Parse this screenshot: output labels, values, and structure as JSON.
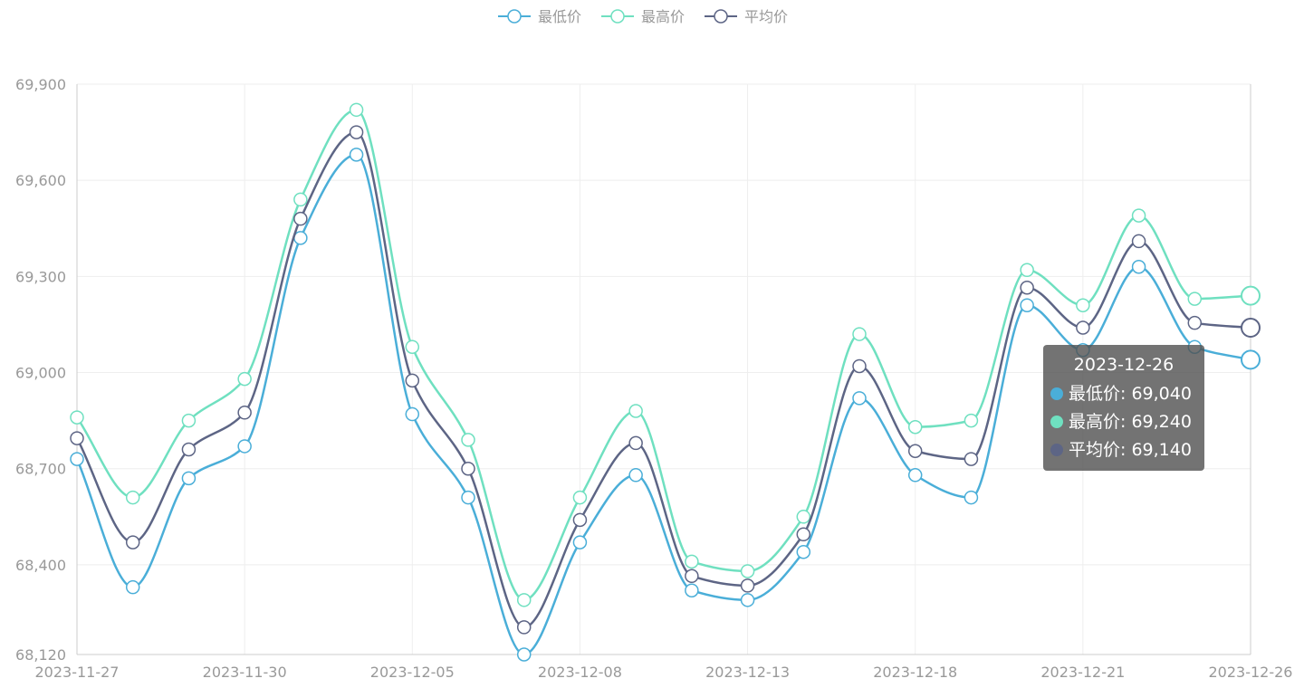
{
  "chart_data": {
    "type": "line",
    "smooth": true,
    "x": [
      "2023-11-27",
      "2023-11-28",
      "2023-11-29",
      "2023-11-30",
      "2023-12-01",
      "2023-12-04",
      "2023-12-05",
      "2023-12-06",
      "2023-12-07",
      "2023-12-08",
      "2023-12-11",
      "2023-12-12",
      "2023-12-13",
      "2023-12-14",
      "2023-12-15",
      "2023-12-18",
      "2023-12-19",
      "2023-12-20",
      "2023-12-21",
      "2023-12-22",
      "2023-12-25",
      "2023-12-26"
    ],
    "x_tick_labels": [
      "2023-11-27",
      "2023-11-30",
      "2023-12-05",
      "2023-12-08",
      "2023-12-13",
      "2023-12-18",
      "2023-12-21",
      "2023-12-26"
    ],
    "series": [
      {
        "name": "最低价",
        "color": "#4aaed8",
        "values": [
          68730,
          68330,
          68670,
          68770,
          69420,
          69680,
          68870,
          68610,
          68120,
          68470,
          68680,
          68320,
          68290,
          68440,
          68920,
          68680,
          68610,
          69210,
          69070,
          69330,
          69080,
          69040
        ]
      },
      {
        "name": "最高价",
        "color": "#6fe0c0",
        "values": [
          68860,
          68610,
          68850,
          68980,
          69540,
          69820,
          69080,
          68790,
          68290,
          68610,
          68880,
          68410,
          68380,
          68550,
          69120,
          68830,
          68850,
          69320,
          69210,
          69490,
          69230,
          69240
        ]
      },
      {
        "name": "平均价",
        "color": "#5d6585",
        "values": [
          68795,
          68470,
          68760,
          68875,
          69480,
          69750,
          68975,
          68700,
          68205,
          68540,
          68780,
          68365,
          68335,
          68495,
          69020,
          68755,
          68730,
          69265,
          69140,
          69410,
          69155,
          69140
        ]
      }
    ],
    "ylim": [
      68120,
      69900
    ],
    "y_ticks": [
      "69,900",
      "69,600",
      "69,300",
      "69,000",
      "68,700",
      "68,400",
      "68,120"
    ],
    "y_tick_values": [
      69900,
      69600,
      69300,
      69000,
      68700,
      68400,
      68120
    ],
    "grid": true,
    "legend_position": "top-center"
  },
  "tooltip": {
    "title": "2023-12-26",
    "rows": [
      {
        "label": "最低价: 69,040",
        "color": "#4aaed8"
      },
      {
        "label": "最高价: 69,240",
        "color": "#6fe0c0"
      },
      {
        "label": "平均价: 69,140",
        "color": "#5d6585"
      }
    ]
  }
}
